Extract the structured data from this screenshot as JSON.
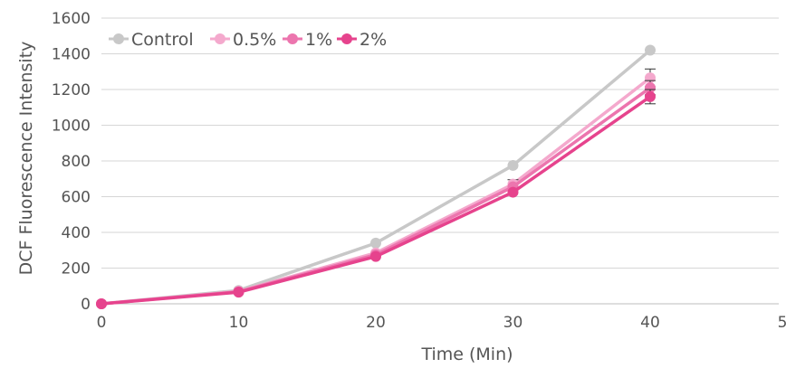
{
  "chart_data": {
    "type": "line",
    "title": "",
    "xlabel": "Time (Min)",
    "ylabel": "DCF  Fluorescence Intensity",
    "x": [
      0,
      10,
      20,
      30,
      40
    ],
    "xlim": [
      0,
      50
    ],
    "ylim": [
      0,
      1600
    ],
    "x_ticks": [
      "0",
      "10",
      "20",
      "30",
      "40",
      "50"
    ],
    "y_ticks": [
      "0",
      "200",
      "400",
      "600",
      "800",
      "1000",
      "1200",
      "1400",
      "1600"
    ],
    "grid": "horizontal",
    "legend_position": "top-left",
    "series": [
      {
        "name": "Control",
        "color": "#c8c8c8",
        "values": [
          0,
          75,
          340,
          775,
          1420
        ],
        "error": [
          0,
          0,
          0,
          0,
          0
        ]
      },
      {
        "name": "0.5%",
        "color": "#f4a9cd",
        "values": [
          0,
          70,
          285,
          670,
          1265
        ],
        "error": [
          0,
          0,
          0,
          25,
          50
        ]
      },
      {
        "name": "1%",
        "color": "#ec75ae",
        "values": [
          0,
          68,
          275,
          655,
          1210
        ],
        "error": [
          0,
          0,
          0,
          0,
          40
        ]
      },
      {
        "name": "2%",
        "color": "#e6438d",
        "values": [
          0,
          65,
          265,
          625,
          1160
        ],
        "error": [
          0,
          0,
          0,
          0,
          40
        ]
      }
    ]
  }
}
